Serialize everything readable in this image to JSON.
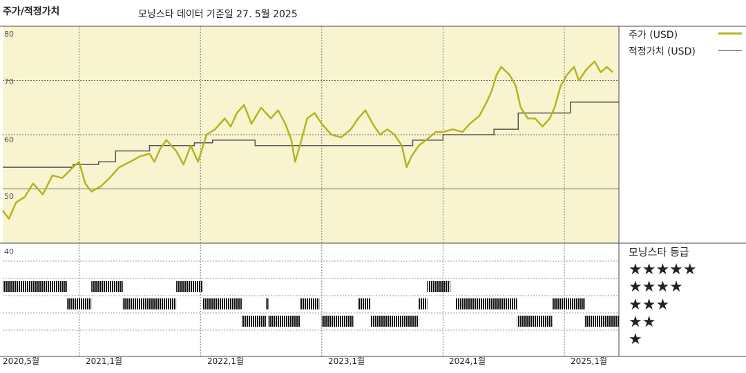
{
  "header": {
    "title": "주가/적정가치",
    "subtitle": "모닝스타 데이터 기준일 27. 5월 2025"
  },
  "legend": {
    "price_label": "주가 (USD)",
    "fair_label": "적정가치 (USD)"
  },
  "rating_title": "모닝스타 등급",
  "colors": {
    "price": "#b5b31f",
    "fair": "#555555",
    "panel_bg": "#f8f4cf",
    "grid": "#666666"
  },
  "chart_data": {
    "type": "line",
    "ylim": [
      40,
      80
    ],
    "yticks": [
      "80",
      "70",
      "60",
      "50",
      "40"
    ],
    "xticks": [
      "2020,5월",
      "2021,1월",
      "2022,1월",
      "2023,1월",
      "2024,1월",
      "2025,1월"
    ],
    "xlim": [
      2020.37,
      2025.45
    ],
    "series": [
      {
        "name": "주가 (USD)",
        "points": [
          [
            2020.37,
            46
          ],
          [
            2020.42,
            44.5
          ],
          [
            2020.48,
            47.5
          ],
          [
            2020.55,
            48.5
          ],
          [
            2020.62,
            51
          ],
          [
            2020.7,
            49
          ],
          [
            2020.78,
            52.5
          ],
          [
            2020.86,
            52
          ],
          [
            2020.95,
            54
          ],
          [
            2021.0,
            55
          ],
          [
            2021.05,
            51
          ],
          [
            2021.1,
            49.5
          ],
          [
            2021.18,
            50.5
          ],
          [
            2021.25,
            52
          ],
          [
            2021.33,
            54
          ],
          [
            2021.42,
            55
          ],
          [
            2021.5,
            56
          ],
          [
            2021.58,
            56.5
          ],
          [
            2021.62,
            55
          ],
          [
            2021.67,
            57.5
          ],
          [
            2021.72,
            59
          ],
          [
            2021.8,
            57
          ],
          [
            2021.86,
            54.5
          ],
          [
            2021.92,
            58
          ],
          [
            2021.98,
            55
          ],
          [
            2022.05,
            60
          ],
          [
            2022.12,
            61
          ],
          [
            2022.2,
            63
          ],
          [
            2022.25,
            61.5
          ],
          [
            2022.3,
            64
          ],
          [
            2022.36,
            65.5
          ],
          [
            2022.42,
            62
          ],
          [
            2022.5,
            65
          ],
          [
            2022.58,
            63
          ],
          [
            2022.64,
            64.5
          ],
          [
            2022.7,
            62
          ],
          [
            2022.75,
            59
          ],
          [
            2022.78,
            55
          ],
          [
            2022.82,
            58
          ],
          [
            2022.88,
            63
          ],
          [
            2022.94,
            64
          ],
          [
            2023.0,
            62
          ],
          [
            2023.08,
            60
          ],
          [
            2023.16,
            59.5
          ],
          [
            2023.24,
            61
          ],
          [
            2023.3,
            63
          ],
          [
            2023.36,
            64.5
          ],
          [
            2023.42,
            62
          ],
          [
            2023.48,
            60
          ],
          [
            2023.54,
            61
          ],
          [
            2023.6,
            60
          ],
          [
            2023.66,
            58
          ],
          [
            2023.7,
            54
          ],
          [
            2023.74,
            56
          ],
          [
            2023.8,
            58
          ],
          [
            2023.86,
            59
          ],
          [
            2023.94,
            60.5
          ],
          [
            2024.0,
            60.5
          ],
          [
            2024.08,
            61
          ],
          [
            2024.16,
            60.5
          ],
          [
            2024.22,
            62
          ],
          [
            2024.3,
            63.5
          ],
          [
            2024.36,
            66
          ],
          [
            2024.4,
            68
          ],
          [
            2024.44,
            71
          ],
          [
            2024.48,
            72.5
          ],
          [
            2024.55,
            71
          ],
          [
            2024.6,
            69
          ],
          [
            2024.64,
            65
          ],
          [
            2024.7,
            63
          ],
          [
            2024.76,
            63
          ],
          [
            2024.82,
            61.5
          ],
          [
            2024.88,
            63
          ],
          [
            2024.92,
            65
          ],
          [
            2024.97,
            69
          ],
          [
            2025.02,
            71
          ],
          [
            2025.08,
            72.5
          ],
          [
            2025.12,
            70
          ],
          [
            2025.18,
            72
          ],
          [
            2025.25,
            73.5
          ],
          [
            2025.3,
            71.5
          ],
          [
            2025.35,
            72.5
          ],
          [
            2025.4,
            71.5
          ]
        ]
      },
      {
        "name": "적정가치 (USD)",
        "steps": [
          [
            2020.37,
            54
          ],
          [
            2020.95,
            54.5
          ],
          [
            2021.16,
            55
          ],
          [
            2021.3,
            57
          ],
          [
            2021.58,
            58
          ],
          [
            2021.95,
            58.5
          ],
          [
            2022.1,
            59
          ],
          [
            2022.45,
            58
          ],
          [
            2023.75,
            59
          ],
          [
            2024.0,
            60
          ],
          [
            2024.42,
            61
          ],
          [
            2024.62,
            64
          ],
          [
            2024.95,
            64
          ],
          [
            2025.05,
            66
          ],
          [
            2025.45,
            66
          ]
        ]
      }
    ],
    "rating_rows": [
      "★★★★★",
      "★★★★",
      "★★★",
      "★★",
      "★"
    ],
    "ratings": [
      {
        "stars": 4,
        "from": 2020.37,
        "to": 2020.9
      },
      {
        "stars": 3,
        "from": 2020.9,
        "to": 2021.1
      },
      {
        "stars": 4,
        "from": 2021.1,
        "to": 2021.36
      },
      {
        "stars": 3,
        "from": 2021.36,
        "to": 2021.8
      },
      {
        "stars": 4,
        "from": 2021.8,
        "to": 2022.02
      },
      {
        "stars": 3,
        "from": 2022.02,
        "to": 2022.34
      },
      {
        "stars": 2,
        "from": 2022.34,
        "to": 2022.54
      },
      {
        "stars": 3,
        "from": 2022.54,
        "to": 2022.56
      },
      {
        "stars": 2,
        "from": 2022.56,
        "to": 2022.82
      },
      {
        "stars": 3,
        "from": 2022.82,
        "to": 2022.98
      },
      {
        "stars": 2,
        "from": 2023.0,
        "to": 2023.26
      },
      {
        "stars": 3,
        "from": 2023.3,
        "to": 2023.4
      },
      {
        "stars": 2,
        "from": 2023.4,
        "to": 2023.8
      },
      {
        "stars": 3,
        "from": 2023.8,
        "to": 2023.87
      },
      {
        "stars": 4,
        "from": 2023.87,
        "to": 2024.06
      },
      {
        "stars": 3,
        "from": 2024.1,
        "to": 2024.61
      },
      {
        "stars": 2,
        "from": 2024.61,
        "to": 2024.9
      },
      {
        "stars": 3,
        "from": 2024.9,
        "to": 2025.17
      },
      {
        "stars": 2,
        "from": 2025.17,
        "to": 2025.45
      }
    ]
  }
}
